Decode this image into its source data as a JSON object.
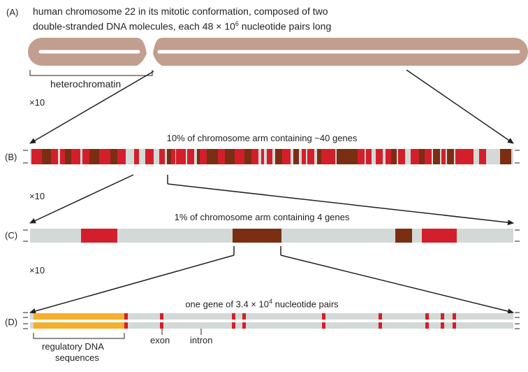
{
  "colors": {
    "chromosome": "#c19e8e",
    "chromosome_gap": "#ffffff",
    "red": "#d31f2b",
    "brown": "#7a2e12",
    "light_dna": "#d3d9d6",
    "regulatory": "#f6ae2d",
    "line": "#231f20"
  },
  "panel_a": {
    "letter": "(A)",
    "caption_line1": "human chromosome 22 in its mitotic conformation, composed of two",
    "caption_line2_pre": "double-stranded DNA molecules, each 48 × 10",
    "caption_line2_sup": "6",
    "caption_line2_post": " nucleotide pairs long",
    "heterochromatin_label": "heterochromatin"
  },
  "zoom_labels": {
    "ab": "×10",
    "bc": "×10",
    "cd": "×10"
  },
  "panel_b": {
    "letter": "(B)",
    "caption": "10% of chromosome arm containing ~40 genes"
  },
  "panel_c": {
    "letter": "(C)",
    "caption": "1% of chromosome arm containing 4 genes"
  },
  "panel_d": {
    "letter": "(D)",
    "caption_pre": "one gene of 3.4 × 10",
    "caption_sup": "4",
    "caption_post": " nucleotide pairs",
    "exon_label": "exon",
    "intron_label": "intron",
    "regulatory_label_line1": "regulatory DNA",
    "regulatory_label_line2": "sequences"
  }
}
